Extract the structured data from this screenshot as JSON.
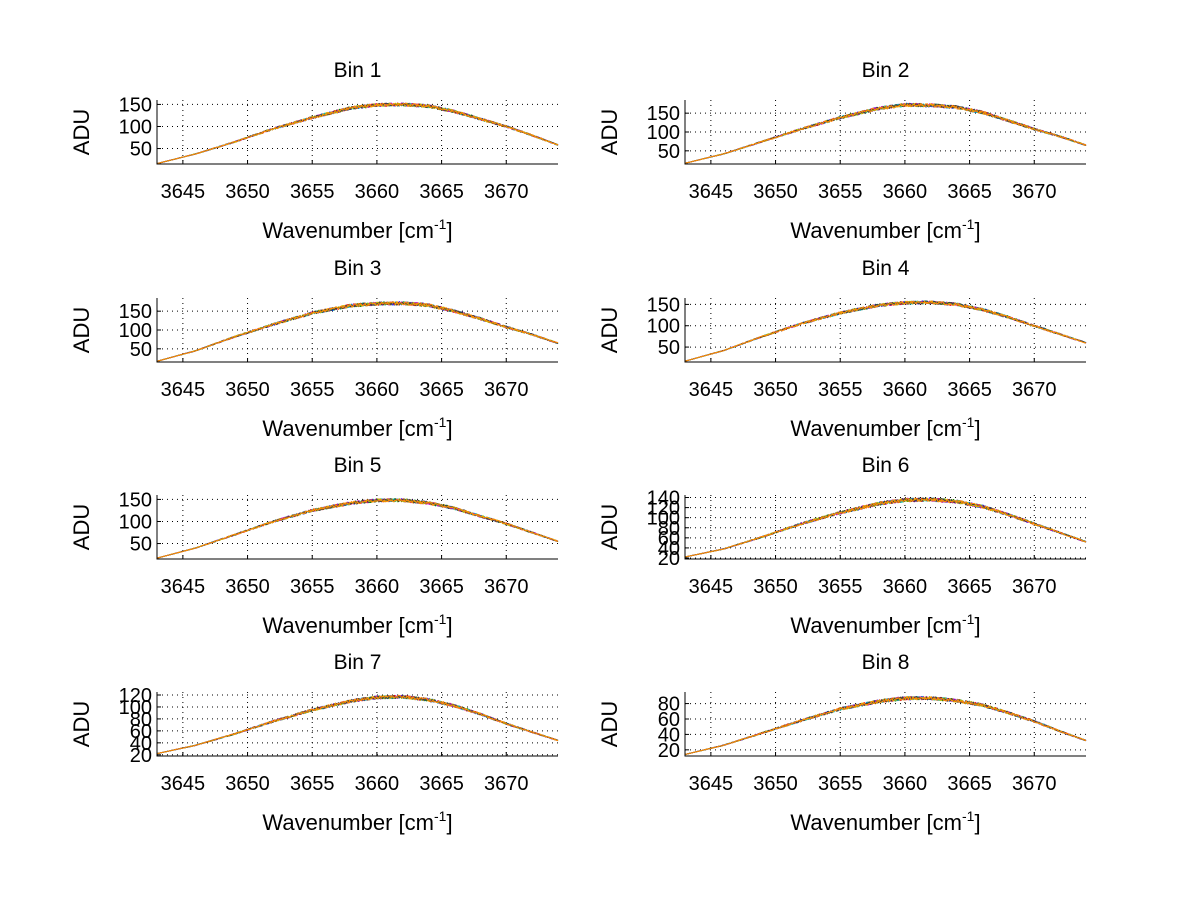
{
  "figure": {
    "background": "#ffffff"
  },
  "axes_labels": {
    "xlabel_main": "Wavenumber [cm",
    "xlabel_sup": "-1",
    "xlabel_close": "]",
    "ylabel": "ADU"
  },
  "colors": {
    "series": [
      "#0000ff",
      "#008000",
      "#ff0000",
      "#00bfbf",
      "#bf00bf",
      "#bfbf00",
      "#404040",
      "#ff8c00"
    ]
  },
  "chart_data": [
    {
      "type": "line",
      "title": "Bin 1",
      "xlabel": "Wavenumber [cm-1]",
      "ylabel": "ADU",
      "xlim": [
        3643,
        3674
      ],
      "ylim": [
        15,
        160
      ],
      "xticks": [
        3645,
        3650,
        3655,
        3660,
        3665,
        3670
      ],
      "yticks": [
        50,
        100,
        150
      ],
      "ytick_labels": [
        "50",
        "100",
        "150"
      ],
      "grid": true,
      "profile": {
        "x": [
          3643,
          3646,
          3649,
          3652,
          3655,
          3658,
          3660,
          3662,
          3664,
          3666,
          3668,
          3670,
          3672,
          3674
        ],
        "y": [
          16,
          38,
          65,
          95,
          120,
          142,
          149,
          150,
          146,
          134,
          117,
          100,
          80,
          58
        ]
      },
      "series_count": 8,
      "noise_amp": 4
    },
    {
      "type": "line",
      "title": "Bin 2",
      "xlabel": "Wavenumber [cm-1]",
      "ylabel": "ADU",
      "xlim": [
        3643,
        3674
      ],
      "ylim": [
        15,
        185
      ],
      "xticks": [
        3645,
        3650,
        3655,
        3660,
        3665,
        3670
      ],
      "yticks": [
        50,
        100,
        150
      ],
      "ytick_labels": [
        "50",
        "100",
        "150"
      ],
      "grid": true,
      "profile": {
        "x": [
          3643,
          3646,
          3649,
          3652,
          3655,
          3658,
          3660,
          3662,
          3664,
          3666,
          3668,
          3670,
          3672,
          3674
        ],
        "y": [
          17,
          42,
          75,
          108,
          138,
          163,
          172,
          171,
          166,
          152,
          130,
          108,
          88,
          65
        ]
      },
      "series_count": 8,
      "noise_amp": 5
    },
    {
      "type": "line",
      "title": "Bin 3",
      "xlabel": "Wavenumber [cm-1]",
      "ylabel": "ADU",
      "xlim": [
        3643,
        3674
      ],
      "ylim": [
        15,
        185
      ],
      "xticks": [
        3645,
        3650,
        3655,
        3660,
        3665,
        3670
      ],
      "yticks": [
        50,
        100,
        150
      ],
      "ytick_labels": [
        "50",
        "100",
        "150"
      ],
      "grid": true,
      "profile": {
        "x": [
          3643,
          3646,
          3649,
          3652,
          3655,
          3658,
          3660,
          3662,
          3664,
          3666,
          3668,
          3670,
          3672,
          3674
        ],
        "y": [
          17,
          45,
          82,
          115,
          145,
          165,
          170,
          171,
          166,
          150,
          130,
          108,
          88,
          65
        ]
      },
      "series_count": 8,
      "noise_amp": 5
    },
    {
      "type": "line",
      "title": "Bin 4",
      "xlabel": "Wavenumber [cm-1]",
      "ylabel": "ADU",
      "xlim": [
        3643,
        3674
      ],
      "ylim": [
        15,
        165
      ],
      "xticks": [
        3645,
        3650,
        3655,
        3660,
        3665,
        3670
      ],
      "yticks": [
        50,
        100,
        150
      ],
      "ytick_labels": [
        "50",
        "100",
        "150"
      ],
      "grid": true,
      "profile": {
        "x": [
          3643,
          3646,
          3649,
          3652,
          3655,
          3658,
          3660,
          3662,
          3664,
          3666,
          3668,
          3670,
          3672,
          3674
        ],
        "y": [
          17,
          42,
          75,
          105,
          130,
          148,
          154,
          155,
          150,
          138,
          120,
          100,
          80,
          60
        ]
      },
      "series_count": 8,
      "noise_amp": 4
    },
    {
      "type": "line",
      "title": "Bin 5",
      "xlabel": "Wavenumber [cm-1]",
      "ylabel": "ADU",
      "xlim": [
        3643,
        3674
      ],
      "ylim": [
        15,
        160
      ],
      "xticks": [
        3645,
        3650,
        3655,
        3660,
        3665,
        3670
      ],
      "yticks": [
        50,
        100,
        150
      ],
      "ytick_labels": [
        "50",
        "100",
        "150"
      ],
      "grid": true,
      "profile": {
        "x": [
          3643,
          3646,
          3649,
          3652,
          3655,
          3658,
          3660,
          3662,
          3664,
          3666,
          3668,
          3670,
          3672,
          3674
        ],
        "y": [
          17,
          40,
          70,
          100,
          125,
          142,
          148,
          148,
          142,
          130,
          112,
          95,
          75,
          55
        ]
      },
      "series_count": 8,
      "noise_amp": 4
    },
    {
      "type": "line",
      "title": "Bin 6",
      "xlabel": "Wavenumber [cm-1]",
      "ylabel": "ADU",
      "xlim": [
        3643,
        3674
      ],
      "ylim": [
        18,
        145
      ],
      "xticks": [
        3645,
        3650,
        3655,
        3660,
        3665,
        3670
      ],
      "yticks": [
        20,
        40,
        60,
        80,
        100,
        120,
        140
      ],
      "ytick_labels": [
        "20",
        "40",
        "60",
        "80",
        "100",
        "120",
        "140"
      ],
      "grid": true,
      "profile": {
        "x": [
          3643,
          3646,
          3649,
          3652,
          3655,
          3658,
          3660,
          3662,
          3664,
          3666,
          3668,
          3670,
          3672,
          3674
        ],
        "y": [
          22,
          38,
          62,
          88,
          110,
          128,
          135,
          136,
          132,
          122,
          106,
          88,
          70,
          52
        ]
      },
      "series_count": 8,
      "noise_amp": 4
    },
    {
      "type": "line",
      "title": "Bin 7",
      "xlabel": "Wavenumber [cm-1]",
      "ylabel": "ADU",
      "xlim": [
        3643,
        3674
      ],
      "ylim": [
        18,
        125
      ],
      "xticks": [
        3645,
        3650,
        3655,
        3660,
        3665,
        3670
      ],
      "yticks": [
        20,
        40,
        60,
        80,
        100,
        120
      ],
      "ytick_labels": [
        "20",
        "40",
        "60",
        "80",
        "100",
        "120"
      ],
      "grid": true,
      "profile": {
        "x": [
          3643,
          3646,
          3649,
          3652,
          3655,
          3658,
          3660,
          3662,
          3664,
          3666,
          3668,
          3670,
          3672,
          3674
        ],
        "y": [
          22,
          36,
          55,
          76,
          95,
          110,
          116,
          117,
          112,
          102,
          88,
          72,
          58,
          44
        ]
      },
      "series_count": 8,
      "noise_amp": 3
    },
    {
      "type": "line",
      "title": "Bin 8",
      "xlabel": "Wavenumber [cm-1]",
      "ylabel": "ADU",
      "xlim": [
        3643,
        3674
      ],
      "ylim": [
        12,
        95
      ],
      "xticks": [
        3645,
        3650,
        3655,
        3660,
        3665,
        3670
      ],
      "yticks": [
        20,
        40,
        60,
        80
      ],
      "ytick_labels": [
        "20",
        "40",
        "60",
        "80"
      ],
      "grid": true,
      "profile": {
        "x": [
          3643,
          3646,
          3649,
          3652,
          3655,
          3658,
          3660,
          3662,
          3664,
          3666,
          3668,
          3670,
          3672,
          3674
        ],
        "y": [
          14,
          26,
          42,
          58,
          73,
          83,
          87,
          87,
          84,
          78,
          68,
          57,
          44,
          32
        ]
      },
      "series_count": 8,
      "noise_amp": 2.5
    }
  ]
}
